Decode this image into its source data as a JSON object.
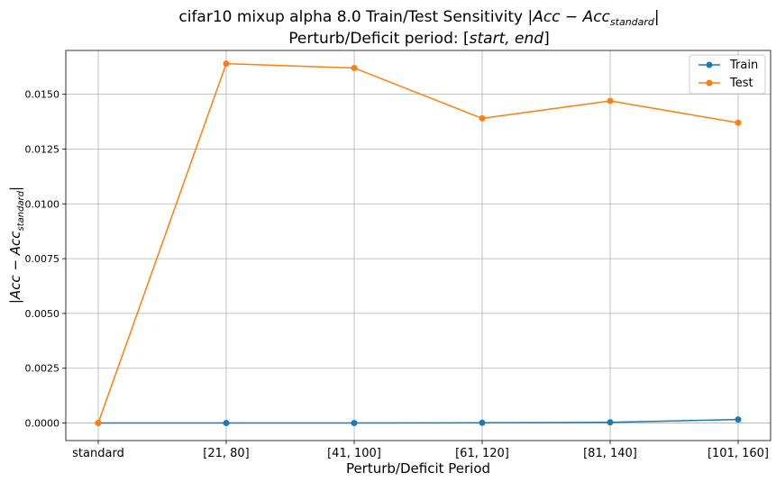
{
  "chart_data": {
    "type": "line",
    "title_prefix": "cifar10 mixup alpha 8.0 Train/Test Sensitivity ",
    "title_math_main": "|Acc − Acc",
    "title_math_sub": "standard",
    "title_math_end": "|",
    "subtitle_prefix": "Perturb/Deficit period: [",
    "subtitle_math": "start, end",
    "subtitle_suffix": "]",
    "xlabel": "Perturb/Deficit Period",
    "ylabel_main": "|Acc − Acc",
    "ylabel_sub": "standard",
    "ylabel_end": "|",
    "categories": [
      "standard",
      "[21, 80]",
      "[41, 100]",
      "[61, 120]",
      "[81, 140]",
      "[101, 160]"
    ],
    "yticks": [
      "0.0000",
      "0.0025",
      "0.0050",
      "0.0075",
      "0.0100",
      "0.0125",
      "0.0150"
    ],
    "ylim": [
      -0.0008,
      0.017
    ],
    "grid": true,
    "legend_position": "top-right",
    "series": [
      {
        "name": "Train",
        "color": "#1f77b4",
        "values": [
          0.0,
          0.0,
          0.0,
          1e-05,
          3e-05,
          0.00016
        ]
      },
      {
        "name": "Test",
        "color": "#ff7f0e",
        "values": [
          0.0,
          0.0164,
          0.0162,
          0.0139,
          0.0147,
          0.0137
        ]
      }
    ]
  }
}
